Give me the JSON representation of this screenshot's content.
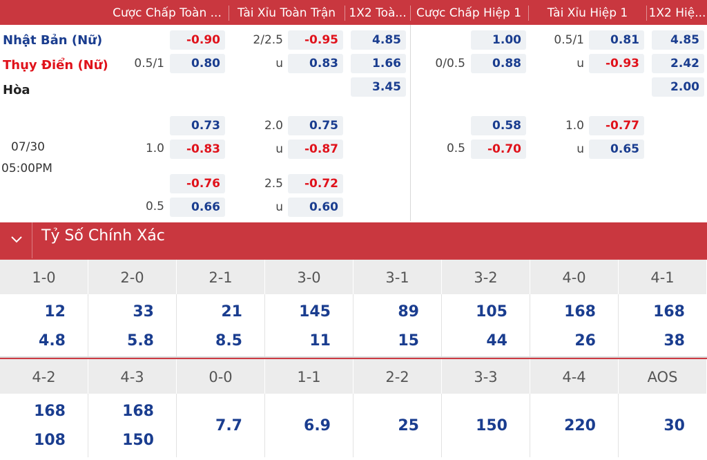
{
  "header": {
    "cols": [
      "Cược Chấp Toàn ...",
      "Tài Xỉu Toàn Trận",
      "1X2 Toà...",
      "Cược Chấp Hiệp 1",
      "Tài Xỉu Hiệp 1",
      "1X2 Hiệ..."
    ]
  },
  "match": {
    "home": "Nhật Bản (Nữ)",
    "away": "Thụy Điển (Nữ)",
    "draw": "Hòa",
    "date": "07/30",
    "time": "05:00PM",
    "main": {
      "ft_hdp": {
        "line": "0.5/1",
        "home": "-0.90",
        "away": "0.80"
      },
      "ft_ou": {
        "line": "2/2.5",
        "over": "-0.95",
        "u": "u",
        "under": "0.83"
      },
      "ft_1x2": {
        "home": "4.85",
        "away": "1.66",
        "draw": "3.45"
      },
      "h1_hdp": {
        "line": "0/0.5",
        "home": "1.00",
        "away": "0.88"
      },
      "h1_ou": {
        "line": "0.5/1",
        "over": "0.81",
        "u": "u",
        "under": "-0.93"
      },
      "h1_1x2": {
        "home": "4.85",
        "away": "2.42",
        "draw": "2.00"
      }
    },
    "alt1": {
      "ft_hdp": {
        "line": "1.0",
        "home": "0.73",
        "away": "-0.83"
      },
      "ft_ou": {
        "line": "2.0",
        "over": "0.75",
        "u": "u",
        "under": "-0.87"
      },
      "h1_hdp": {
        "line": "0.5",
        "home": "0.58",
        "away": "-0.70"
      },
      "h1_ou": {
        "line": "1.0",
        "over": "-0.77",
        "u": "u",
        "under": "0.65"
      }
    },
    "alt2": {
      "ft_hdp": {
        "line": "0.5",
        "home": "-0.76",
        "away": "0.66"
      },
      "ft_ou": {
        "line": "2.5",
        "over": "-0.72",
        "u": "u",
        "under": "0.60"
      }
    }
  },
  "correct_score": {
    "title": "Tỷ Số Chính Xác",
    "row1": [
      {
        "score": "1-0",
        "a": "12",
        "b": "4.8"
      },
      {
        "score": "2-0",
        "a": "33",
        "b": "5.8"
      },
      {
        "score": "2-1",
        "a": "21",
        "b": "8.5"
      },
      {
        "score": "3-0",
        "a": "145",
        "b": "11"
      },
      {
        "score": "3-1",
        "a": "89",
        "b": "15"
      },
      {
        "score": "3-2",
        "a": "105",
        "b": "44"
      },
      {
        "score": "4-0",
        "a": "168",
        "b": "26"
      },
      {
        "score": "4-1",
        "a": "168",
        "b": "38"
      }
    ],
    "row2": [
      {
        "score": "4-2",
        "a": "168",
        "b": "108"
      },
      {
        "score": "4-3",
        "a": "168",
        "b": "150"
      },
      {
        "score": "0-0",
        "m": "7.7"
      },
      {
        "score": "1-1",
        "m": "6.9"
      },
      {
        "score": "2-2",
        "m": "25"
      },
      {
        "score": "3-3",
        "m": "150"
      },
      {
        "score": "4-4",
        "m": "220"
      },
      {
        "score": "AOS",
        "m": "30"
      }
    ]
  },
  "colors": {
    "header_bg": "#c9373f",
    "odds_blue": "#1a3d8f",
    "odds_red": "#e0121b"
  }
}
